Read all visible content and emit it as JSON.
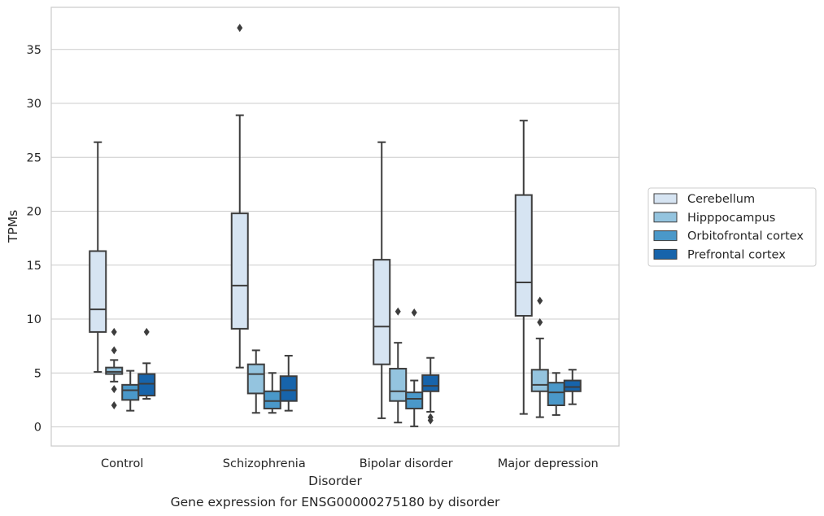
{
  "chart_data": {
    "type": "box",
    "title": "",
    "caption": "Gene expression for ENSG00000275180 by disorder",
    "xlabel": "Disorder",
    "ylabel": "TPMs",
    "ylim": [
      -1.8,
      38.5
    ],
    "yticks": [
      0,
      5,
      10,
      15,
      20,
      25,
      30,
      35
    ],
    "grid": "horizontal",
    "legend_position": "right",
    "categories": [
      "Control",
      "Schizophrenia",
      "Bipolar disorder",
      "Major depression"
    ],
    "series": [
      {
        "name": "Cerebellum",
        "color": "#d6e4f2",
        "boxes": [
          {
            "whislo": 5.1,
            "q1": 8.8,
            "med": 10.9,
            "q3": 16.3,
            "whishi": 26.4,
            "fliers": []
          },
          {
            "whislo": 5.5,
            "q1": 9.1,
            "med": 13.1,
            "q3": 19.8,
            "whishi": 28.9,
            "fliers": [
              37.0
            ]
          },
          {
            "whislo": 0.8,
            "q1": 5.8,
            "med": 9.3,
            "q3": 15.5,
            "whishi": 26.4,
            "fliers": []
          },
          {
            "whislo": 1.2,
            "q1": 10.3,
            "med": 13.4,
            "q3": 21.5,
            "whishi": 28.4,
            "fliers": []
          }
        ]
      },
      {
        "name": "Hipppocampus",
        "color": "#94c4df",
        "boxes": [
          {
            "whislo": 4.2,
            "q1": 4.9,
            "med": 5.1,
            "q3": 5.5,
            "whishi": 6.2,
            "fliers": [
              8.8,
              7.1,
              3.5,
              2.0
            ]
          },
          {
            "whislo": 1.3,
            "q1": 3.1,
            "med": 4.9,
            "q3": 5.8,
            "whishi": 7.1,
            "fliers": []
          },
          {
            "whislo": 0.4,
            "q1": 2.4,
            "med": 3.3,
            "q3": 5.4,
            "whishi": 7.8,
            "fliers": [
              10.7
            ]
          },
          {
            "whislo": 0.9,
            "q1": 3.3,
            "med": 3.9,
            "q3": 5.3,
            "whishi": 8.2,
            "fliers": [
              11.7,
              9.7
            ]
          }
        ]
      },
      {
        "name": "Orbitofrontal cortex",
        "color": "#4a98c9",
        "boxes": [
          {
            "whislo": 1.5,
            "q1": 2.5,
            "med": 3.4,
            "q3": 3.9,
            "whishi": 5.2,
            "fliers": []
          },
          {
            "whislo": 1.3,
            "q1": 1.7,
            "med": 2.4,
            "q3": 3.3,
            "whishi": 5.0,
            "fliers": []
          },
          {
            "whislo": 0.05,
            "q1": 1.7,
            "med": 2.6,
            "q3": 3.2,
            "whishi": 4.3,
            "fliers": [
              10.6
            ]
          },
          {
            "whislo": 1.1,
            "q1": 2.0,
            "med": 3.2,
            "q3": 4.1,
            "whishi": 5.0,
            "fliers": []
          }
        ]
      },
      {
        "name": "Prefrontal cortex",
        "color": "#1764ab",
        "boxes": [
          {
            "whislo": 2.6,
            "q1": 2.9,
            "med": 4.0,
            "q3": 4.9,
            "whishi": 5.9,
            "fliers": [
              8.8
            ]
          },
          {
            "whislo": 1.5,
            "q1": 2.4,
            "med": 3.4,
            "q3": 4.7,
            "whishi": 6.6,
            "fliers": []
          },
          {
            "whislo": 1.4,
            "q1": 3.3,
            "med": 3.8,
            "q3": 4.8,
            "whishi": 6.4,
            "fliers": [
              0.9,
              0.6
            ]
          },
          {
            "whislo": 2.1,
            "q1": 3.3,
            "med": 3.7,
            "q3": 4.3,
            "whishi": 5.3,
            "fliers": []
          }
        ]
      }
    ]
  }
}
